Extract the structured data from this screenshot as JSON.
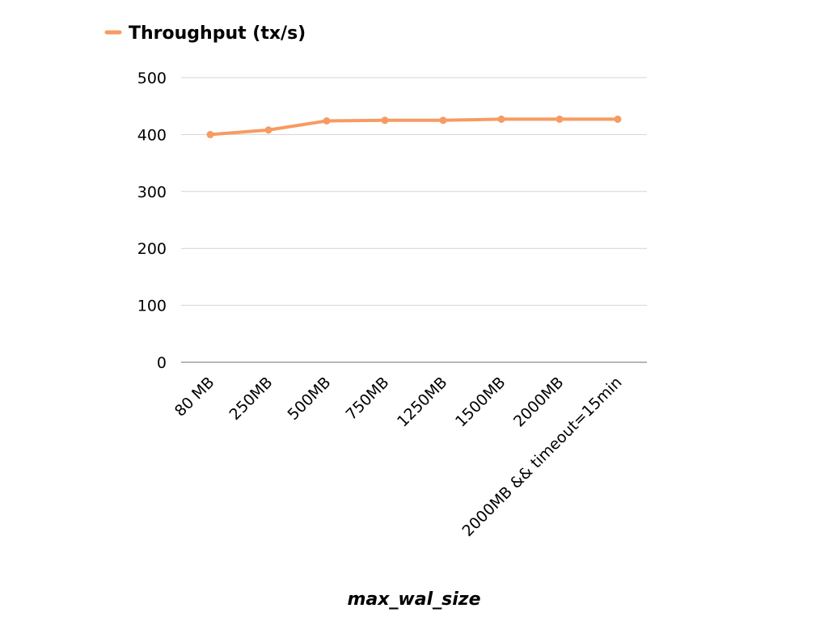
{
  "chart_data": {
    "type": "line",
    "title": "",
    "xlabel": "max_wal_size",
    "ylabel": "",
    "categories": [
      "80 MB",
      "250MB",
      "500MB",
      "750MB",
      "1250MB",
      "1500MB",
      "2000MB",
      "2000MB && timeout=15min"
    ],
    "series": [
      {
        "name": "Throughput (tx/s)",
        "color": "#F79B62",
        "values": [
          400,
          408,
          424,
          425,
          425,
          427,
          427,
          427
        ]
      }
    ],
    "ylim": [
      0,
      500
    ],
    "yticks": [
      0,
      100,
      200,
      300,
      400,
      500
    ],
    "grid": true,
    "legend_position": "top-left"
  }
}
